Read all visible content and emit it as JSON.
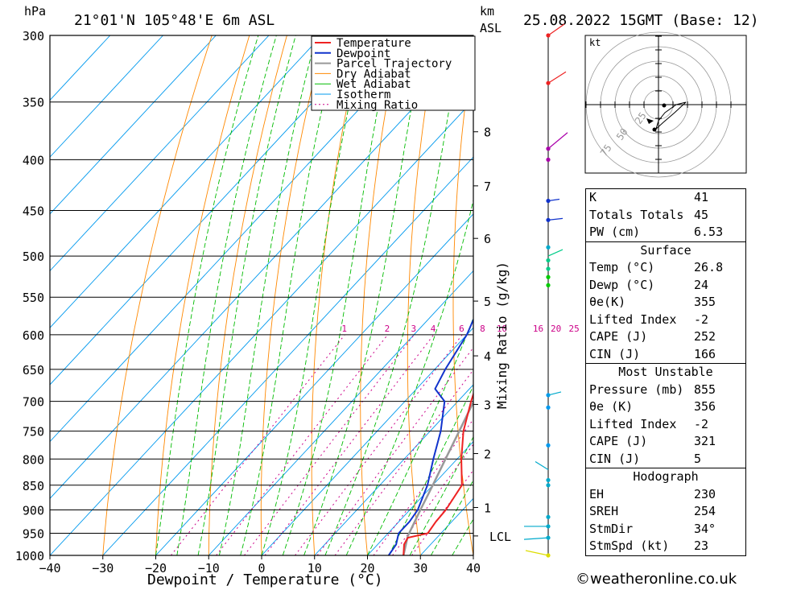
{
  "header": {
    "hpa_unit": "hPa",
    "location": "21°01'N 105°48'E 6m ASL",
    "km_unit": "km",
    "asl_unit": "ASL",
    "datetime": "25.08.2022 15GMT (Base: 12)"
  },
  "chart_data": {
    "type": "skew-t",
    "xlabel": "Dewpoint / Temperature (°C)",
    "x_ticks": [
      -40,
      -30,
      -20,
      -10,
      0,
      10,
      20,
      30,
      40
    ],
    "xlim": [
      -40,
      40
    ],
    "pressure_levels": [
      300,
      350,
      400,
      450,
      500,
      550,
      600,
      650,
      700,
      750,
      800,
      850,
      900,
      950,
      1000
    ],
    "ylim_hpa": [
      1000,
      300
    ],
    "km_ticks": [
      {
        "label": "8",
        "p": 375
      },
      {
        "label": "7",
        "p": 425
      },
      {
        "label": "6",
        "p": 480
      },
      {
        "label": "5",
        "p": 555
      },
      {
        "label": "4",
        "p": 630
      },
      {
        "label": "3",
        "p": 705
      },
      {
        "label": "2",
        "p": 790
      },
      {
        "label": "1",
        "p": 895
      },
      {
        "label": "LCL",
        "p": 956
      }
    ],
    "mixing_ratio_label": "Mixing Ratio (g/kg)",
    "mixing_ratio_values": [
      "1",
      "2",
      "3",
      "4",
      "6",
      "8",
      "10",
      "16",
      "20",
      "25"
    ],
    "legend": [
      "Temperature",
      "Dewpoint",
      "Parcel Trajectory",
      "Dry Adiabat",
      "Wet Adiabat",
      "Isotherm",
      "Mixing Ratio"
    ],
    "colors": {
      "temperature": "#ee2222",
      "dewpoint": "#1133cc",
      "parcel": "#999999",
      "dry_adiabat": "#ff8800",
      "wet_adiabat": "#00bb00",
      "isotherm": "#0099ee",
      "mixing_ratio": "#cc0088"
    },
    "temperature": [
      {
        "p": 1000,
        "t": 26.8
      },
      {
        "p": 975,
        "t": 25.0
      },
      {
        "p": 960,
        "t": 24.5
      },
      {
        "p": 950,
        "t": 27.5
      },
      {
        "p": 925,
        "t": 27.0
      },
      {
        "p": 900,
        "t": 26.8
      },
      {
        "p": 850,
        "t": 25.5
      },
      {
        "p": 800,
        "t": 20.8
      },
      {
        "p": 750,
        "t": 16.3
      },
      {
        "p": 700,
        "t": 12.5
      },
      {
        "p": 650,
        "t": 8.8
      },
      {
        "p": 600,
        "t": 5.0
      },
      {
        "p": 550,
        "t": 0.5
      },
      {
        "p": 500,
        "t": -4.5
      },
      {
        "p": 450,
        "t": -10.5
      },
      {
        "p": 400,
        "t": -17.0
      },
      {
        "p": 370,
        "t": -21.5
      }
    ],
    "dewpoint": [
      {
        "p": 1000,
        "t": 24.0
      },
      {
        "p": 975,
        "t": 23.5
      },
      {
        "p": 950,
        "t": 22.0
      },
      {
        "p": 925,
        "t": 22.0
      },
      {
        "p": 900,
        "t": 21.5
      },
      {
        "p": 850,
        "t": 19.0
      },
      {
        "p": 800,
        "t": 15.5
      },
      {
        "p": 750,
        "t": 12.0
      },
      {
        "p": 700,
        "t": 7.5
      },
      {
        "p": 680,
        "t": 3.5
      },
      {
        "p": 650,
        "t": 2.0
      },
      {
        "p": 600,
        "t": 0.0
      },
      {
        "p": 550,
        "t": -3.5
      },
      {
        "p": 500,
        "t": -8.0
      },
      {
        "p": 450,
        "t": -13.5
      },
      {
        "p": 400,
        "t": -20.0
      },
      {
        "p": 370,
        "t": -24.5
      }
    ],
    "parcel": [
      {
        "p": 1000,
        "t": 26.8
      },
      {
        "p": 956,
        "t": 24.2
      },
      {
        "p": 900,
        "t": 22.0
      },
      {
        "p": 850,
        "t": 20.0
      },
      {
        "p": 800,
        "t": 17.8
      },
      {
        "p": 750,
        "t": 15.5
      },
      {
        "p": 700,
        "t": 13.0
      },
      {
        "p": 650,
        "t": 10.0
      },
      {
        "p": 600,
        "t": 7.0
      },
      {
        "p": 550,
        "t": 3.5
      },
      {
        "p": 500,
        "t": -0.5
      },
      {
        "p": 450,
        "t": -5.5
      },
      {
        "p": 400,
        "t": -11.5
      },
      {
        "p": 370,
        "t": -15.5
      }
    ],
    "wind_dots": [
      {
        "p": 300,
        "c": "#ee2222"
      },
      {
        "p": 335,
        "c": "#ee2222"
      },
      {
        "p": 390,
        "c": "#aa00aa"
      },
      {
        "p": 400,
        "c": "#aa00aa"
      },
      {
        "p": 440,
        "c": "#1133cc"
      },
      {
        "p": 460,
        "c": "#1133cc"
      },
      {
        "p": 490,
        "c": "#00aacc"
      },
      {
        "p": 505,
        "c": "#00cc88"
      },
      {
        "p": 515,
        "c": "#00cc88"
      },
      {
        "p": 525,
        "c": "#00cc00"
      },
      {
        "p": 535,
        "c": "#00cc00"
      },
      {
        "p": 690,
        "c": "#0099ee"
      },
      {
        "p": 710,
        "c": "#0099ee"
      },
      {
        "p": 775,
        "c": "#0099ee"
      },
      {
        "p": 840,
        "c": "#00aacc"
      },
      {
        "p": 850,
        "c": "#00aacc"
      },
      {
        "p": 915,
        "c": "#00aacc"
      },
      {
        "p": 935,
        "c": "#00aacc"
      },
      {
        "p": 960,
        "c": "#00aacc"
      },
      {
        "p": 1000,
        "c": "#dddd00"
      }
    ]
  },
  "hodograph": {
    "unit": "kt",
    "ring_labels": [
      "25",
      "50",
      "75"
    ]
  },
  "indices": {
    "general": [
      {
        "label": "K",
        "value": "41"
      },
      {
        "label": "Totals Totals",
        "value": "45"
      },
      {
        "label": "PW (cm)",
        "value": "6.53"
      }
    ],
    "surface_title": "Surface",
    "surface": [
      {
        "label": "Temp (°C)",
        "value": "26.8"
      },
      {
        "label": "Dewp (°C)",
        "value": "24"
      },
      {
        "label": "θe(K)",
        "value": "355"
      },
      {
        "label": "Lifted Index",
        "value": "-2"
      },
      {
        "label": "CAPE (J)",
        "value": "252"
      },
      {
        "label": "CIN (J)",
        "value": "166"
      }
    ],
    "unstable_title": "Most Unstable",
    "unstable": [
      {
        "label": "Pressure (mb)",
        "value": "855"
      },
      {
        "label": "θe (K)",
        "value": "356"
      },
      {
        "label": "Lifted Index",
        "value": "-2"
      },
      {
        "label": "CAPE (J)",
        "value": "321"
      },
      {
        "label": "CIN (J)",
        "value": "5"
      }
    ],
    "hodo_title": "Hodograph",
    "hodo": [
      {
        "label": "EH",
        "value": "230"
      },
      {
        "label": "SREH",
        "value": "254"
      },
      {
        "label": "StmDir",
        "value": "34°"
      },
      {
        "label": "StmSpd (kt)",
        "value": "23"
      }
    ]
  },
  "footer": "©weatheronline.co.uk"
}
